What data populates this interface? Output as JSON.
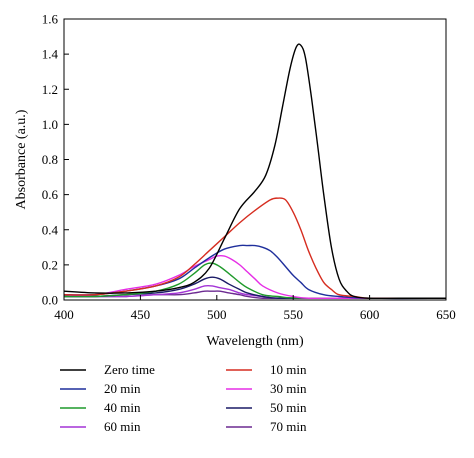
{
  "chart_data": {
    "type": "line",
    "title": "",
    "xlabel": "Wavelength (nm)",
    "ylabel": "Absorbance (a.u.)",
    "xlim": [
      400,
      650
    ],
    "ylim": [
      0,
      1.6
    ],
    "xticks": [
      "400",
      "450",
      "500",
      "550",
      "600",
      "650"
    ],
    "yticks": [
      "0.0",
      "0.2",
      "0.4",
      "0.6",
      "0.8",
      "1.0",
      "1.2",
      "1.4",
      "1.6"
    ],
    "grid": false,
    "legend_position": "bottom",
    "series": [
      {
        "name": "Zero time",
        "color": "#000000",
        "x": [
          400,
          420,
          440,
          460,
          475,
          485,
          495,
          505,
          515,
          525,
          532,
          538,
          543,
          548,
          552,
          555,
          558,
          562,
          566,
          570,
          575,
          580,
          585,
          590,
          600,
          620,
          650
        ],
        "y": [
          0.05,
          0.04,
          0.04,
          0.05,
          0.07,
          0.1,
          0.18,
          0.35,
          0.52,
          0.62,
          0.71,
          0.88,
          1.1,
          1.32,
          1.44,
          1.45,
          1.38,
          1.15,
          0.88,
          0.6,
          0.3,
          0.12,
          0.05,
          0.02,
          0.01,
          0.01,
          0.01
        ]
      },
      {
        "name": "10 min",
        "color": "#d62d20",
        "x": [
          400,
          420,
          440,
          460,
          475,
          485,
          495,
          505,
          515,
          525,
          535,
          540,
          545,
          550,
          555,
          560,
          565,
          570,
          575,
          580,
          590,
          600,
          620,
          650
        ],
        "y": [
          0.03,
          0.03,
          0.05,
          0.08,
          0.13,
          0.2,
          0.28,
          0.36,
          0.44,
          0.51,
          0.57,
          0.58,
          0.57,
          0.5,
          0.4,
          0.28,
          0.18,
          0.1,
          0.06,
          0.03,
          0.02,
          0.01,
          0.01,
          0.01
        ]
      },
      {
        "name": "20 min",
        "color": "#1f2f9c",
        "x": [
          400,
          420,
          440,
          460,
          475,
          485,
          495,
          505,
          515,
          520,
          525,
          530,
          535,
          540,
          545,
          550,
          555,
          560,
          570,
          580,
          600,
          650
        ],
        "y": [
          0.03,
          0.03,
          0.05,
          0.08,
          0.12,
          0.18,
          0.24,
          0.29,
          0.31,
          0.31,
          0.31,
          0.3,
          0.28,
          0.24,
          0.19,
          0.14,
          0.1,
          0.06,
          0.03,
          0.02,
          0.01,
          0.01
        ]
      },
      {
        "name": "30 min",
        "color": "#e62ee6",
        "x": [
          400,
          420,
          440,
          460,
          475,
          485,
          495,
          500,
          505,
          510,
          515,
          520,
          525,
          530,
          540,
          550,
          560,
          580,
          650
        ],
        "y": [
          0.03,
          0.03,
          0.06,
          0.09,
          0.14,
          0.19,
          0.23,
          0.25,
          0.25,
          0.23,
          0.2,
          0.16,
          0.12,
          0.08,
          0.04,
          0.02,
          0.01,
          0.01,
          0.01
        ]
      },
      {
        "name": "40 min",
        "color": "#1f9a2b",
        "x": [
          400,
          420,
          440,
          460,
          475,
          485,
          492,
          497,
          502,
          508,
          515,
          520,
          530,
          540,
          560,
          650
        ],
        "y": [
          0.02,
          0.02,
          0.03,
          0.05,
          0.09,
          0.15,
          0.2,
          0.21,
          0.19,
          0.15,
          0.1,
          0.07,
          0.03,
          0.02,
          0.01,
          0.01
        ]
      },
      {
        "name": "50 min",
        "color": "#1a1a66",
        "x": [
          400,
          420,
          440,
          460,
          475,
          485,
          492,
          497,
          502,
          508,
          515,
          520,
          530,
          540,
          560,
          650
        ],
        "y": [
          0.02,
          0.02,
          0.03,
          0.04,
          0.06,
          0.09,
          0.12,
          0.13,
          0.12,
          0.09,
          0.06,
          0.04,
          0.02,
          0.01,
          0.01,
          0.01
        ]
      },
      {
        "name": "60 min",
        "color": "#a334d6",
        "x": [
          400,
          420,
          440,
          460,
          475,
          485,
          492,
          497,
          502,
          508,
          515,
          520,
          530,
          540,
          560,
          650
        ],
        "y": [
          0.02,
          0.02,
          0.02,
          0.03,
          0.04,
          0.06,
          0.08,
          0.08,
          0.07,
          0.06,
          0.04,
          0.03,
          0.02,
          0.01,
          0.01,
          0.01
        ]
      },
      {
        "name": "70 min",
        "color": "#6b2a90",
        "x": [
          400,
          420,
          440,
          460,
          475,
          485,
          492,
          497,
          502,
          508,
          515,
          520,
          530,
          540,
          560,
          650
        ],
        "y": [
          0.02,
          0.02,
          0.02,
          0.03,
          0.03,
          0.04,
          0.05,
          0.05,
          0.05,
          0.04,
          0.03,
          0.02,
          0.01,
          0.01,
          0.01,
          0.01
        ]
      }
    ]
  }
}
